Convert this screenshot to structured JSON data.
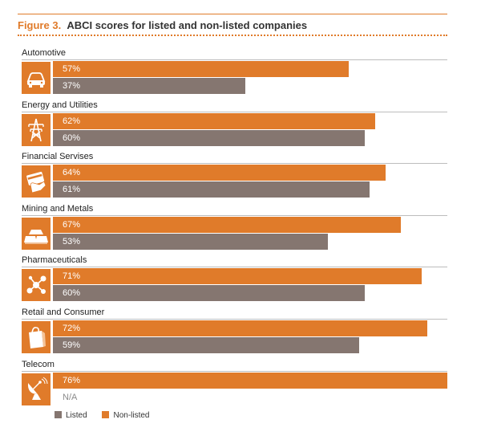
{
  "title_number": "Figure 3.",
  "title_text": "ABCI scores for listed and non-listed companies",
  "colors": {
    "non_listed": "#e07b2a",
    "listed": "#857670",
    "accent": "#e07b2a"
  },
  "chart_data": {
    "type": "bar",
    "orientation": "horizontal",
    "title": "ABCI scores for listed and non-listed companies",
    "xlim": [
      0,
      80
    ],
    "grid": false,
    "legend_position": "bottom-left",
    "categories": [
      "Automotive",
      "Energy and Utilities",
      "Financial Servises",
      "Mining and Metals",
      "Pharmaceuticals",
      "Retail and Consumer",
      "Telecom"
    ],
    "icons": [
      "car-icon",
      "power-tower-icon",
      "credit-card-hand-icon",
      "gold-bars-icon",
      "molecule-icon",
      "shopping-bag-icon",
      "satellite-dish-icon"
    ],
    "series": [
      {
        "name": "Non-listed",
        "values": [
          57,
          62,
          64,
          67,
          71,
          72,
          76
        ],
        "labels": [
          "57%",
          "62%",
          "64%",
          "67%",
          "71%",
          "72%",
          "76%"
        ]
      },
      {
        "name": "Listed",
        "values": [
          37,
          60,
          61,
          53,
          60,
          59,
          null
        ],
        "labels": [
          "37%",
          "60%",
          "61%",
          "53%",
          "60%",
          "59%",
          "N/A"
        ]
      }
    ],
    "legend": [
      "Listed",
      "Non-listed"
    ]
  }
}
